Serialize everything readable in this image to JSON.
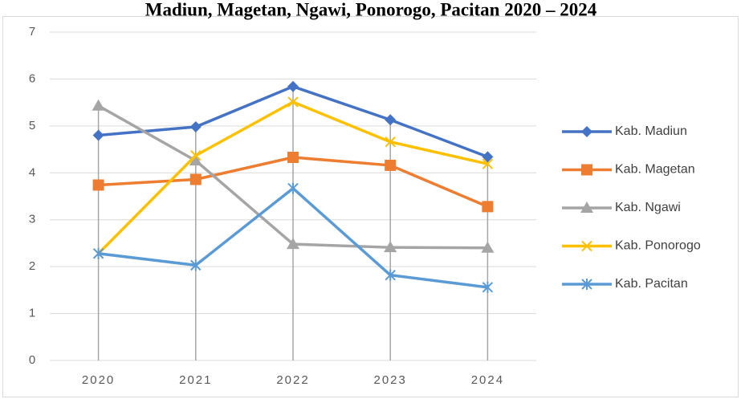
{
  "chart_data": {
    "type": "line",
    "title": "Madiun, Magetan, Ngawi, Ponorogo, Pacitan 2020 – 2024",
    "categories": [
      "2020",
      "2021",
      "2022",
      "2023",
      "2024"
    ],
    "series": [
      {
        "name": "Kab. Madiun",
        "color": "#4472c4",
        "marker": "diamond",
        "values": [
          4.8,
          4.98,
          5.84,
          5.13,
          4.34
        ]
      },
      {
        "name": "Kab. Magetan",
        "color": "#ed7d31",
        "marker": "square",
        "values": [
          3.74,
          3.86,
          4.33,
          4.16,
          3.28
        ]
      },
      {
        "name": "Kab. Ngawi",
        "color": "#a5a5a5",
        "marker": "triangle",
        "values": [
          5.43,
          4.26,
          2.48,
          2.41,
          2.4
        ]
      },
      {
        "name": "Kab. Ponorogo",
        "color": "#ffc000",
        "marker": "x",
        "values": [
          2.28,
          4.37,
          5.51,
          4.66,
          4.19
        ]
      },
      {
        "name": "Kab. Pacitan",
        "color": "#5b9bd5",
        "marker": "asterisk",
        "values": [
          2.28,
          2.03,
          3.67,
          1.82,
          1.56
        ]
      }
    ],
    "ylim": [
      0,
      7
    ],
    "yticks": [
      0,
      1,
      2,
      3,
      4,
      5,
      6,
      7
    ],
    "grid": true,
    "drop_lines": true,
    "legend": "right"
  }
}
